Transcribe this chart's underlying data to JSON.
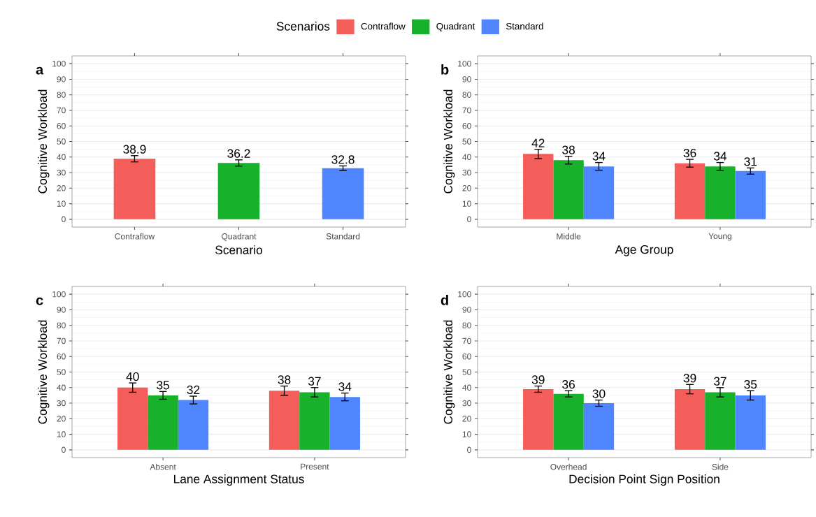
{
  "chart_data": [
    {
      "type": "bar",
      "title": "a",
      "xlabel": "Scenario",
      "ylabel": "Cognitive Workload",
      "categories": [
        "Contraflow",
        "Quadrant",
        "Standard"
      ],
      "values": [
        38.9,
        36.2,
        32.8
      ],
      "colors": [
        "#f35e5a",
        "#17b12b",
        "#4f86ff"
      ],
      "errors": [
        2,
        2,
        1.5
      ],
      "data_labels": true,
      "ylim": [
        -5,
        105
      ],
      "yticks": [
        0,
        10,
        20,
        30,
        40,
        50,
        60,
        70,
        80,
        90,
        100
      ],
      "grid": "y"
    },
    {
      "type": "bar",
      "title": "b",
      "xlabel": "Age Group",
      "ylabel": "Cognitive Workload",
      "categories": [
        "Middle",
        "Young"
      ],
      "legend": "top",
      "legend_title": "Scenarios",
      "series": [
        {
          "name": "Contraflow",
          "color": "#f35e5a",
          "values": [
            42,
            36
          ],
          "errors": [
            3,
            2.5
          ]
        },
        {
          "name": "Quadrant",
          "color": "#17b12b",
          "values": [
            38,
            34
          ],
          "errors": [
            2.5,
            2.5
          ]
        },
        {
          "name": "Standard",
          "color": "#4f86ff",
          "values": [
            34,
            31
          ],
          "errors": [
            2.5,
            2
          ]
        }
      ],
      "data_labels": true,
      "ylim": [
        -5,
        105
      ],
      "yticks": [
        0,
        10,
        20,
        30,
        40,
        50,
        60,
        70,
        80,
        90,
        100
      ],
      "grid": "y"
    },
    {
      "type": "bar",
      "title": "c",
      "xlabel": "Lane Assignment Status",
      "ylabel": "Cognitive Workload",
      "categories": [
        "Absent",
        "Present"
      ],
      "series": [
        {
          "color": "#f35e5a",
          "values": [
            40,
            38
          ],
          "errors": [
            3,
            3
          ]
        },
        {
          "color": "#17b12b",
          "values": [
            35,
            37
          ],
          "errors": [
            2.5,
            3
          ]
        },
        {
          "color": "#4f86ff",
          "values": [
            32,
            34
          ],
          "errors": [
            2.5,
            2.5
          ]
        }
      ],
      "data_labels": true,
      "ylim": [
        -5,
        105
      ],
      "yticks": [
        0,
        10,
        20,
        30,
        40,
        50,
        60,
        70,
        80,
        90,
        100
      ],
      "grid": "y"
    },
    {
      "type": "bar",
      "title": "d",
      "xlabel": "Decision Point Sign Position",
      "ylabel": "Cognitive Workload",
      "categories": [
        "Overhead",
        "Side"
      ],
      "series": [
        {
          "color": "#f35e5a",
          "values": [
            39,
            39
          ],
          "errors": [
            2,
            3
          ]
        },
        {
          "color": "#17b12b",
          "values": [
            36,
            37
          ],
          "errors": [
            2,
            3
          ]
        },
        {
          "color": "#4f86ff",
          "values": [
            30,
            35
          ],
          "errors": [
            2,
            3
          ]
        }
      ],
      "data_labels": true,
      "ylim": [
        -5,
        105
      ],
      "yticks": [
        0,
        10,
        20,
        30,
        40,
        50,
        60,
        70,
        80,
        90,
        100
      ],
      "grid": "y"
    }
  ]
}
